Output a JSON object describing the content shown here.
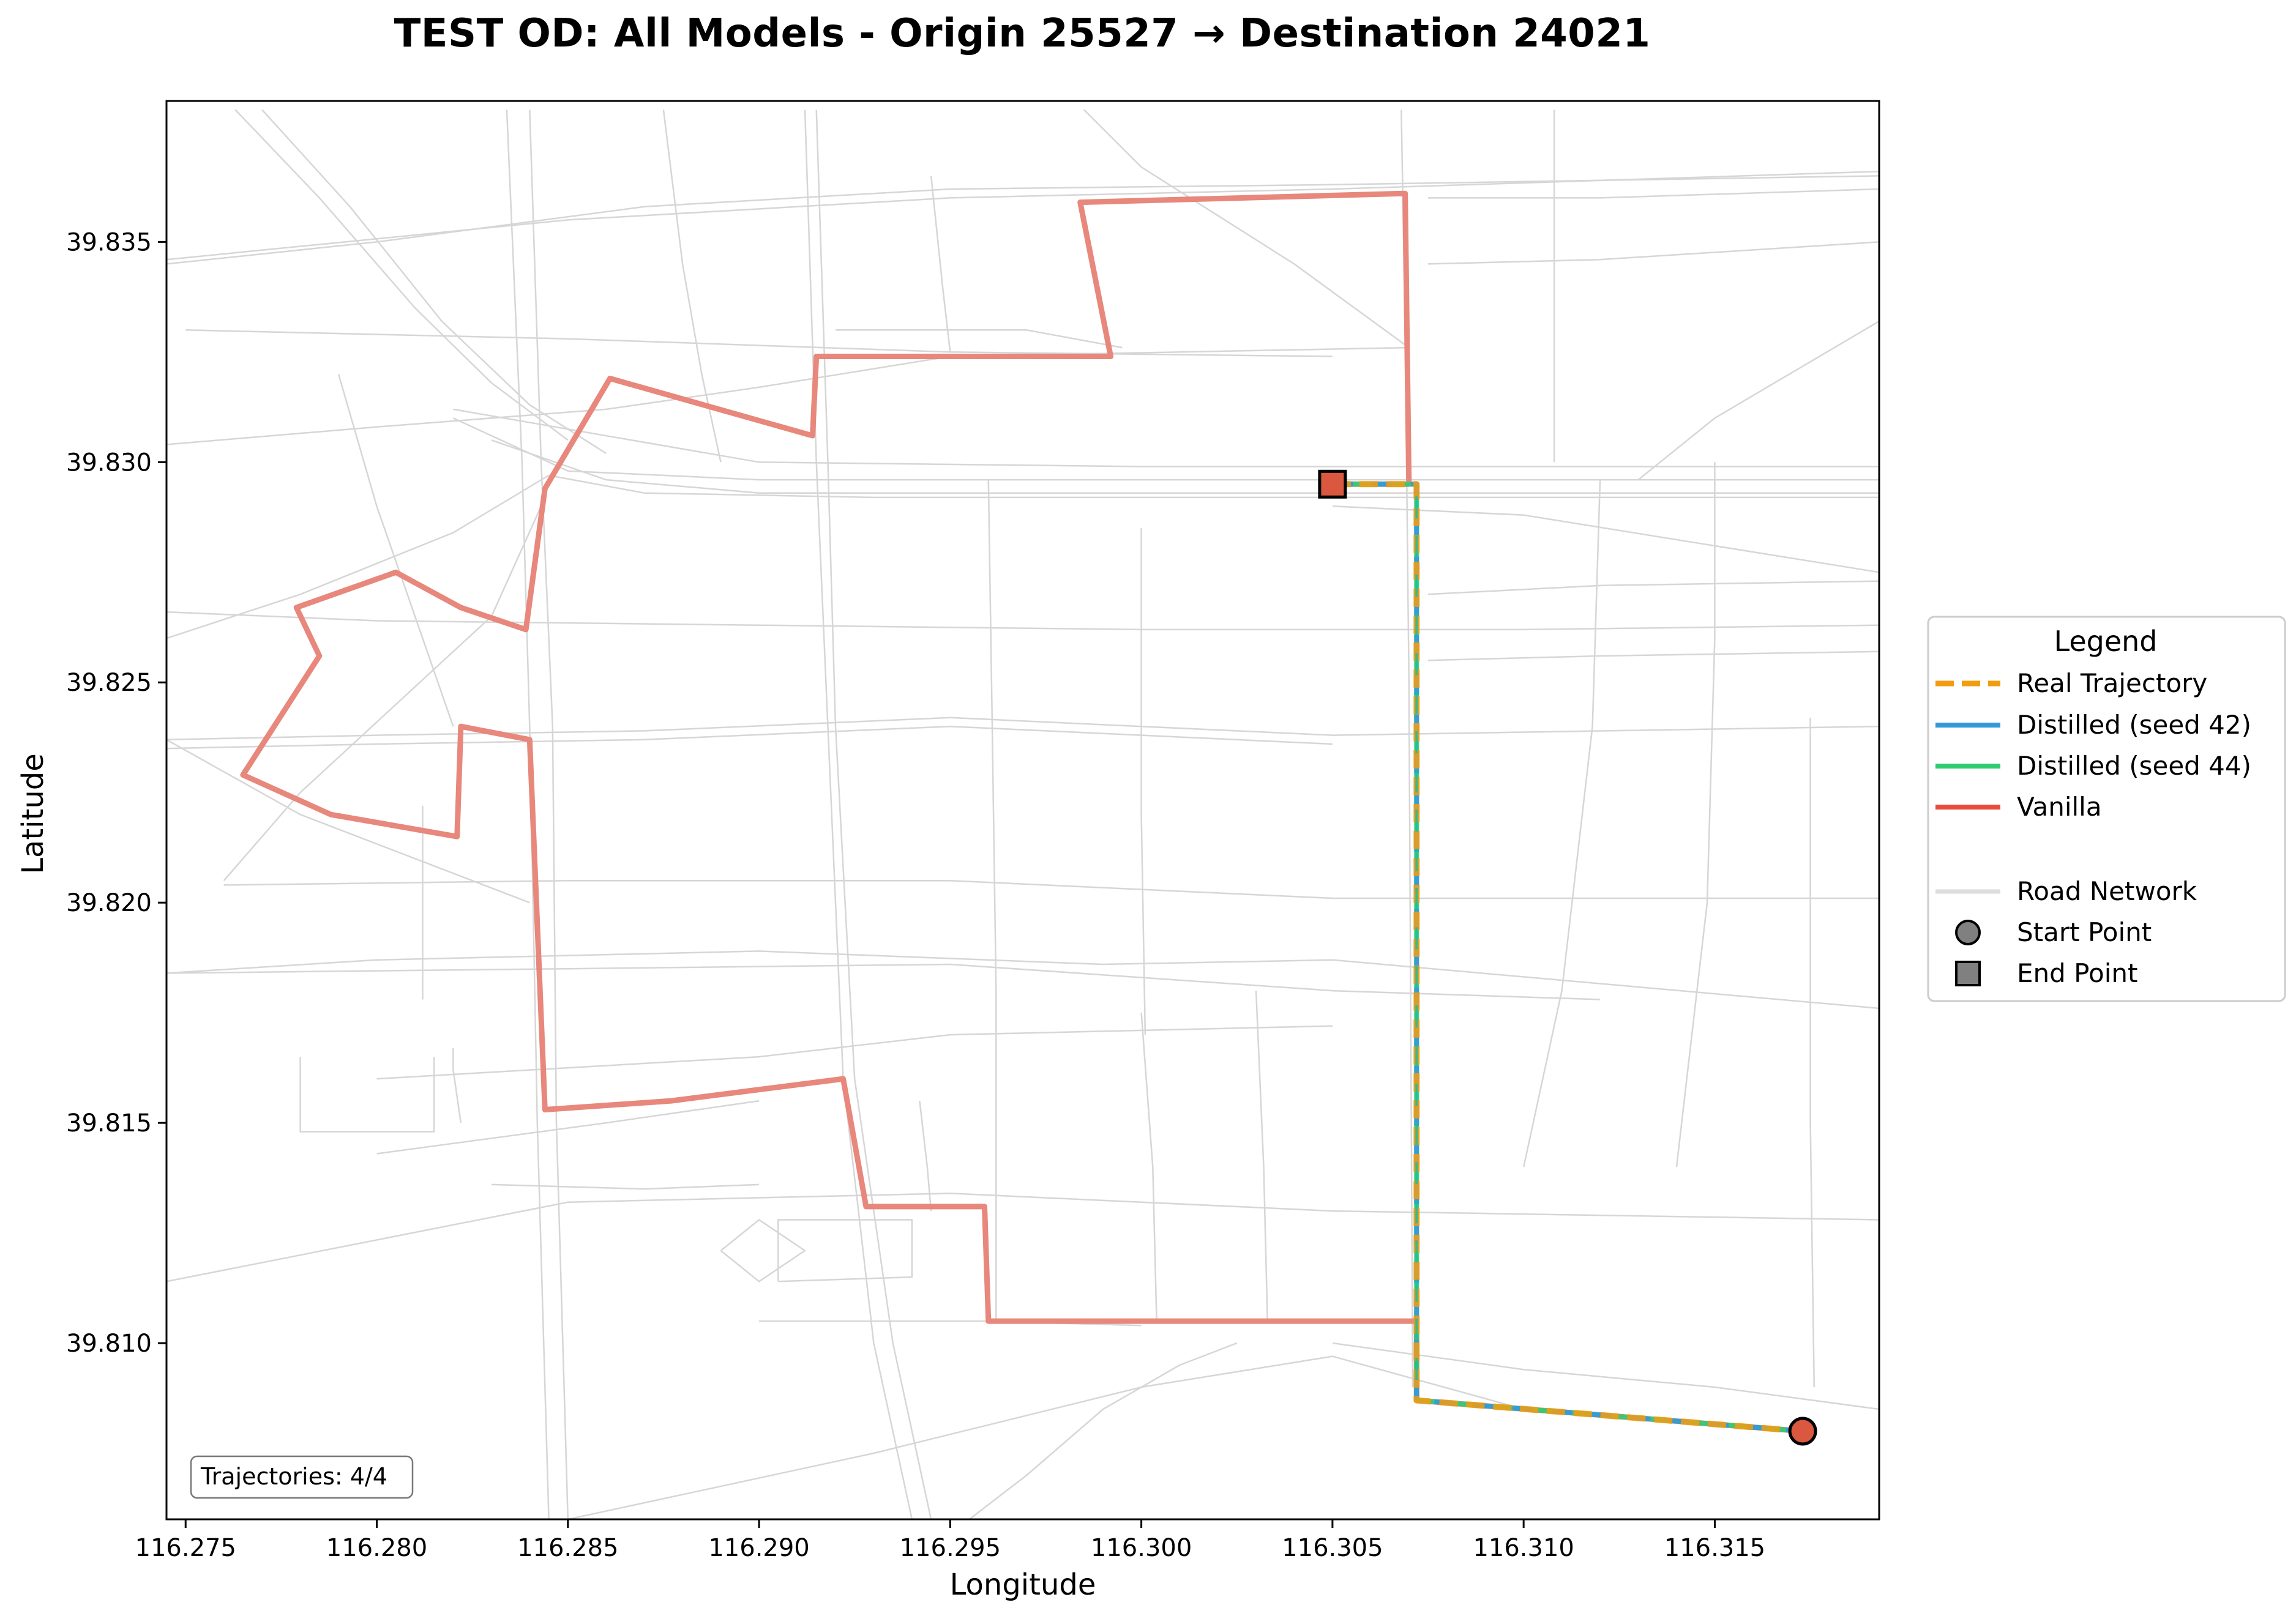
{
  "title": "TEST OD: All Models - Origin 25527 → Destination 24021",
  "axes": {
    "xlabel": "Longitude",
    "ylabel": "Latitude",
    "x_ticks": [
      "116.275",
      "116.280",
      "116.285",
      "116.290",
      "116.295",
      "116.300",
      "116.305",
      "116.310",
      "116.315"
    ],
    "y_ticks": [
      "39.835",
      "39.830",
      "39.825",
      "39.820",
      "39.815",
      "39.810"
    ]
  },
  "legend": {
    "title": "Legend",
    "items": [
      {
        "label": "Real Trajectory",
        "color": "#f39c12",
        "style": "dashed"
      },
      {
        "label": "Distilled (seed 42)",
        "color": "#3498db",
        "style": "solid"
      },
      {
        "label": "Distilled (seed 44)",
        "color": "#2ecc71",
        "style": "solid"
      },
      {
        "label": "Vanilla",
        "color": "#e74c3c",
        "style": "solid"
      },
      {
        "label": "Road Network",
        "color": "#dddddd",
        "style": "solid"
      },
      {
        "label": "Start Point",
        "color": "#808080",
        "marker": "circle"
      },
      {
        "label": "End Point",
        "color": "#808080",
        "marker": "square"
      }
    ]
  },
  "count_box": "Trajectories: 4/4",
  "chart_data": {
    "type": "line",
    "title": "TEST OD: All Models - Origin 25527 → Destination 24021",
    "xlabel": "Longitude",
    "ylabel": "Latitude",
    "xlim": [
      116.2745,
      116.3193
    ],
    "ylim": [
      39.806,
      39.8382
    ],
    "grid": false,
    "legend_position": "right",
    "start_point": {
      "x": 116.3173,
      "y": 39.808,
      "color": "#d9583f"
    },
    "end_point": {
      "x": 116.305,
      "y": 39.8295,
      "color": "#d9583f"
    },
    "series": [
      {
        "name": "Vanilla",
        "color": "#e8877b",
        "x": [
          116.305,
          116.307,
          116.3069,
          116.2984,
          116.2992,
          116.2915,
          116.2914,
          116.2861,
          116.2844,
          116.2839,
          116.2822,
          116.2805,
          116.2779,
          116.2785,
          116.2765,
          116.2788,
          116.2821,
          116.2822,
          116.284,
          116.2844,
          116.2877,
          116.2922,
          116.2928,
          116.2959,
          116.296,
          116.3072,
          116.3072,
          116.3173
        ],
        "y": [
          39.8295,
          39.8295,
          39.8361,
          39.8359,
          39.8324,
          39.8324,
          39.8306,
          39.8319,
          39.8294,
          39.8262,
          39.8267,
          39.8275,
          39.8267,
          39.8256,
          39.8229,
          39.822,
          39.8215,
          39.824,
          39.8237,
          39.8153,
          39.8155,
          39.816,
          39.8131,
          39.8131,
          39.8105,
          39.8105,
          39.8087,
          39.808
        ]
      },
      {
        "name": "Distilled (seed 44)",
        "color": "#2ecc71",
        "x": [
          116.305,
          116.3072,
          116.3072,
          116.3173
        ],
        "y": [
          39.8295,
          39.8295,
          39.8087,
          39.808
        ]
      },
      {
        "name": "Distilled (seed 42)",
        "color": "#3498db",
        "x": [
          116.305,
          116.3072,
          116.3072,
          116.3173
        ],
        "y": [
          39.8295,
          39.8295,
          39.8087,
          39.808
        ]
      },
      {
        "name": "Real Trajectory",
        "color": "#f39c12",
        "x": [
          116.305,
          116.3072,
          116.3072,
          116.3173
        ],
        "y": [
          39.8295,
          39.8295,
          39.8087,
          39.808
        ]
      }
    ],
    "road_network": [
      {
        "x": [
          116.2745,
          116.285,
          116.295,
          116.305,
          116.3193
        ],
        "y": [
          39.8346,
          39.8355,
          39.836,
          39.8362,
          39.8366
        ]
      },
      {
        "x": [
          116.2745,
          116.28,
          116.287,
          116.295,
          116.305,
          116.3193
        ],
        "y": [
          39.8345,
          39.835,
          39.8358,
          39.8362,
          39.8363,
          39.8365
        ]
      },
      {
        "x": [
          116.282,
          116.285,
          116.29,
          116.3,
          116.31,
          116.3193
        ],
        "y": [
          39.831,
          39.8298,
          39.8296,
          39.8296,
          39.8296,
          39.8296
        ]
      },
      {
        "x": [
          116.283,
          116.286,
          116.29,
          116.3,
          116.31,
          116.3193
        ],
        "y": [
          39.8305,
          39.8296,
          39.8293,
          39.8293,
          39.8293,
          39.8293
        ]
      },
      {
        "x": [
          116.2845,
          116.287,
          116.293,
          116.3,
          116.3193
        ],
        "y": [
          39.8297,
          39.8293,
          39.8292,
          39.8292,
          39.8292
        ]
      },
      {
        "x": [
          116.282,
          116.29,
          116.3,
          116.31,
          116.3193
        ],
        "y": [
          39.8312,
          39.83,
          39.8299,
          39.8299,
          39.8299
        ]
      },
      {
        "x": [
          116.2763,
          116.2785,
          116.281,
          116.283,
          116.285
        ],
        "y": [
          39.838,
          39.836,
          39.8335,
          39.8318,
          39.8305
        ]
      },
      {
        "x": [
          116.277,
          116.2793,
          116.2817,
          116.284,
          116.286
        ],
        "y": [
          39.838,
          39.8358,
          39.8332,
          39.8313,
          39.8302
        ]
      },
      {
        "x": [
          116.2745,
          116.28,
          116.287,
          116.295,
          116.305,
          116.3193
        ],
        "y": [
          39.8237,
          39.8238,
          39.8239,
          39.8242,
          39.8238,
          39.824
        ]
      },
      {
        "x": [
          116.2745,
          116.28,
          116.287,
          116.295,
          116.305
        ],
        "y": [
          39.8235,
          39.8236,
          39.8237,
          39.824,
          39.8236
        ]
      },
      {
        "x": [
          116.2745,
          116.285,
          116.295,
          116.305,
          116.312
        ],
        "y": [
          39.8184,
          39.8185,
          39.8186,
          39.818,
          39.8178
        ]
      },
      {
        "x": [
          116.276,
          116.285,
          116.295,
          116.305,
          116.3193
        ],
        "y": [
          39.8204,
          39.8205,
          39.8205,
          39.8201,
          39.8201
        ]
      },
      {
        "x": [
          116.2745,
          116.28,
          116.29,
          116.299,
          116.305,
          116.3193
        ],
        "y": [
          39.8184,
          39.8187,
          39.8189,
          39.8186,
          39.8187,
          39.8176
        ]
      },
      {
        "x": [
          116.2745,
          116.285,
          116.295,
          116.305,
          116.3193
        ],
        "y": [
          39.8114,
          39.8132,
          39.8134,
          39.813,
          39.8128
        ]
      },
      {
        "x": [
          116.28,
          116.29,
          116.295,
          116.305
        ],
        "y": [
          39.816,
          39.8165,
          39.817,
          39.8172
        ]
      },
      {
        "x": [
          116.2745,
          116.28,
          116.29,
          116.3,
          116.31,
          116.3193
        ],
        "y": [
          39.8266,
          39.8264,
          39.8263,
          39.8262,
          39.8262,
          39.8263
        ]
      },
      {
        "x": [
          116.275,
          116.285,
          116.295,
          116.305
        ],
        "y": [
          39.833,
          39.8328,
          39.8325,
          39.8324
        ]
      },
      {
        "x": [
          116.2745,
          116.28,
          116.286,
          116.29,
          116.295,
          116.307
        ],
        "y": [
          39.8304,
          39.8308,
          39.8312,
          39.8317,
          39.8324,
          39.8326
        ]
      },
      {
        "x": [
          116.284,
          116.2843,
          116.2846,
          116.2847,
          116.285
        ],
        "y": [
          39.838,
          39.83,
          39.824,
          39.815,
          39.806
        ]
      },
      {
        "x": [
          116.2834,
          116.2838,
          116.284,
          116.2842,
          116.2845
        ],
        "y": [
          39.838,
          39.83,
          39.824,
          39.815,
          39.806
        ]
      },
      {
        "x": [
          116.2915,
          116.2918,
          116.292,
          116.2925,
          116.2935,
          116.2945
        ],
        "y": [
          39.838,
          39.83,
          39.824,
          39.816,
          39.81,
          39.806
        ]
      },
      {
        "x": [
          116.2912,
          116.2915,
          116.2918,
          116.2922,
          116.293,
          116.294
        ],
        "y": [
          39.838,
          39.83,
          39.824,
          39.816,
          39.81,
          39.806
        ]
      },
      {
        "x": [
          116.296,
          116.2961,
          116.2962,
          116.2962
        ],
        "y": [
          39.8296,
          39.824,
          39.818,
          39.8105
        ]
      },
      {
        "x": [
          116.3,
          116.3,
          116.3001
        ],
        "y": [
          39.8285,
          39.822,
          39.817
        ]
      },
      {
        "x": [
          116.3068,
          116.3069,
          116.307,
          116.3071
        ],
        "y": [
          39.838,
          39.833,
          39.825,
          39.809
        ]
      },
      {
        "x": [
          116.3108,
          116.3108,
          116.3108
        ],
        "y": [
          39.838,
          39.834,
          39.83
        ]
      },
      {
        "x": [
          116.312,
          116.3118,
          116.311,
          116.31
        ],
        "y": [
          39.8296,
          39.824,
          39.818,
          39.814
        ]
      },
      {
        "x": [
          116.315,
          116.315,
          116.3148,
          116.314
        ],
        "y": [
          39.83,
          39.826,
          39.82,
          39.814
        ]
      },
      {
        "x": [
          116.3175,
          116.3175,
          116.3176
        ],
        "y": [
          39.8242,
          39.815,
          39.809
        ]
      },
      {
        "x": [
          116.3025,
          116.301,
          116.299,
          116.297,
          116.2955
        ],
        "y": [
          39.81,
          39.8095,
          39.8085,
          39.807,
          39.806
        ]
      },
      {
        "x": [
          116.285,
          116.293,
          116.3,
          116.305,
          116.31
        ],
        "y": [
          39.806,
          39.8075,
          39.809,
          39.8097,
          39.8085
        ]
      },
      {
        "x": [
          116.305,
          116.31,
          116.315,
          116.3193
        ],
        "y": [
          39.81,
          39.8094,
          39.809,
          39.8085
        ]
      },
      {
        "x": [
          116.305,
          116.31,
          116.3193
        ],
        "y": [
          39.829,
          39.8288,
          39.8275
        ]
      },
      {
        "x": [
          116.313,
          116.315,
          116.3193
        ],
        "y": [
          39.8296,
          39.831,
          39.8332
        ]
      },
      {
        "x": [
          116.279,
          116.28,
          116.281,
          116.282
        ],
        "y": [
          39.832,
          39.829,
          39.8265,
          39.824
        ]
      },
      {
        "x": [
          116.2745,
          116.278,
          116.282,
          116.2845
        ],
        "y": [
          39.826,
          39.827,
          39.8284,
          39.8297
        ]
      },
      {
        "x": [
          116.2745,
          116.278,
          116.281,
          116.284
        ],
        "y": [
          39.8237,
          39.822,
          39.821,
          39.82
        ]
      },
      {
        "x": [
          116.276,
          116.278,
          116.283,
          116.2843
        ],
        "y": [
          39.8205,
          39.8225,
          39.8265,
          39.829
        ]
      },
      {
        "x": [
          116.2875,
          116.288,
          116.2885,
          116.289
        ],
        "y": [
          39.838,
          39.8345,
          39.832,
          39.83
        ]
      },
      {
        "x": [
          116.2945,
          116.2948,
          116.295
        ],
        "y": [
          39.8365,
          39.834,
          39.8325
        ]
      },
      {
        "x": [
          116.292,
          116.297,
          116.2995
        ],
        "y": [
          39.833,
          39.833,
          39.8326
        ]
      },
      {
        "x": [
          116.2985,
          116.3,
          116.304,
          116.307
        ],
        "y": [
          39.838,
          39.8367,
          39.8345,
          39.8326
        ]
      },
      {
        "x": [
          116.3075,
          116.312,
          116.3193
        ],
        "y": [
          39.836,
          39.836,
          39.8362
        ]
      },
      {
        "x": [
          116.3075,
          116.312,
          116.3193
        ],
        "y": [
          39.8345,
          39.8346,
          39.835
        ]
      },
      {
        "x": [
          116.3075,
          116.312,
          116.3193
        ],
        "y": [
          39.827,
          39.8272,
          39.8273
        ]
      },
      {
        "x": [
          116.3075,
          116.312,
          116.3193
        ],
        "y": [
          39.8255,
          39.8256,
          39.8257
        ]
      },
      {
        "x": [
          116.28,
          116.286,
          116.29
        ],
        "y": [
          39.8143,
          39.815,
          39.8155
        ]
      },
      {
        "x": [
          116.278,
          116.278,
          116.2815,
          116.2815
        ],
        "y": [
          39.8165,
          39.8148,
          39.8148,
          39.8165
        ]
      },
      {
        "x": [
          116.283,
          116.287,
          116.29
        ],
        "y": [
          39.8136,
          39.8135,
          39.8136
        ]
      },
      {
        "x": [
          116.2905,
          116.294,
          116.294,
          116.2905,
          116.2905
        ],
        "y": [
          39.8114,
          39.8115,
          39.8128,
          39.8128,
          39.8114
        ]
      },
      {
        "x": [
          116.289,
          116.29,
          116.2912,
          116.29,
          116.289
        ],
        "y": [
          39.8121,
          39.8128,
          39.8121,
          39.8114,
          39.8121
        ]
      },
      {
        "x": [
          116.282,
          116.282,
          116.2822
        ],
        "y": [
          39.8167,
          39.8162,
          39.815
        ]
      },
      {
        "x": [
          116.2812,
          116.2812,
          116.2812
        ],
        "y": [
          39.8222,
          39.82,
          39.8178
        ]
      },
      {
        "x": [
          116.2942,
          116.2944,
          116.2945
        ],
        "y": [
          39.8155,
          39.814,
          39.813
        ]
      },
      {
        "x": [
          116.3,
          116.3003,
          116.3004
        ],
        "y": [
          39.8175,
          39.814,
          39.8105
        ]
      },
      {
        "x": [
          116.303,
          116.3032,
          116.3033
        ],
        "y": [
          39.818,
          39.814,
          39.8105
        ]
      },
      {
        "x": [
          116.29,
          116.296,
          116.3
        ],
        "y": [
          39.8105,
          39.8105,
          39.8104
        ]
      }
    ]
  }
}
